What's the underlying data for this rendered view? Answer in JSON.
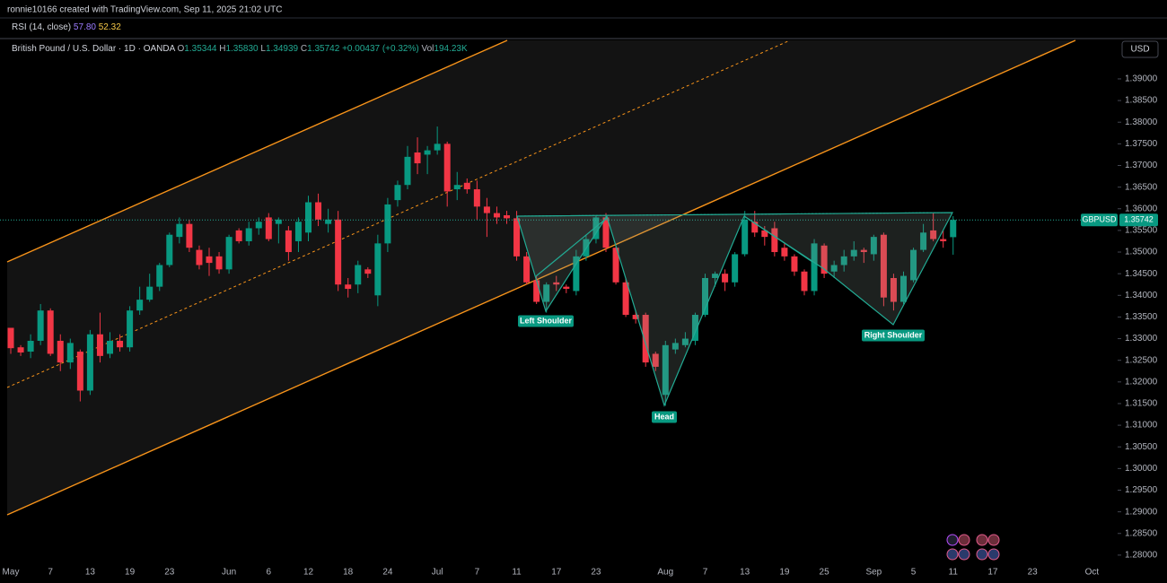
{
  "header": {
    "attribution": "ronnie10166 created with TradingView.com, Sep 11, 2025 21:02 UTC"
  },
  "indicator": {
    "name": "RSI (14, close)",
    "value1": "57.80",
    "value2": "52.32"
  },
  "chart_data": {
    "type": "candlestick",
    "title": "British Pound / U.S. Dollar · 1D · OANDA",
    "quote": [
      [
        "O",
        "1.35344"
      ],
      [
        "H",
        "1.35830"
      ],
      [
        "L",
        "1.34939"
      ],
      [
        "C",
        "1.35742"
      ]
    ],
    "change": "+0.00437 (+0.32%)",
    "volume_label": "Vol",
    "volume": "194.23K",
    "currency": "USD",
    "up_color": "#089981",
    "down_color": "#f23645",
    "categories": [
      "May",
      null,
      null,
      null,
      "7",
      null,
      null,
      null,
      "13",
      null,
      null,
      null,
      "19",
      null,
      null,
      null,
      "23",
      null,
      null,
      null,
      null,
      null,
      "Jun",
      null,
      null,
      null,
      "6",
      null,
      null,
      null,
      "12",
      null,
      null,
      null,
      "18",
      null,
      null,
      null,
      "24",
      null,
      null,
      null,
      null,
      "Jul",
      null,
      null,
      null,
      "7",
      null,
      null,
      null,
      "11",
      null,
      null,
      null,
      "17",
      null,
      null,
      null,
      "23",
      null,
      null,
      null,
      null,
      null,
      null,
      "Aug",
      null,
      null,
      null,
      "7",
      null,
      null,
      null,
      "13",
      null,
      null,
      null,
      "19",
      null,
      null,
      null,
      "25",
      null,
      null,
      null,
      null,
      "Sep",
      null,
      null,
      null,
      "5",
      null,
      null,
      null,
      "11",
      null,
      null,
      null,
      "17",
      null,
      null,
      null,
      "23",
      null,
      null,
      null,
      null,
      null,
      "Oct"
    ],
    "open": [
      1.3325,
      1.328,
      1.327,
      1.3295,
      1.3365,
      1.3295,
      1.3245,
      1.327,
      1.318,
      1.331,
      1.3265,
      1.3295,
      1.328,
      1.3365,
      1.339,
      1.342,
      1.347,
      1.3535,
      1.3565,
      1.3505,
      1.349,
      1.349,
      1.346,
      1.355,
      1.3525,
      1.3555,
      1.358,
      1.3565,
      1.355,
      1.3525,
      1.3545,
      1.3615,
      1.3565,
      1.3575,
      1.3425,
      1.3425,
      1.346,
      1.34,
      1.352,
      1.362,
      1.3655,
      1.373,
      1.3725,
      1.3735,
      1.375,
      1.3645,
      1.366,
      1.3645,
      1.3605,
      1.359,
      1.3585,
      1.3578,
      1.349,
      1.3435,
      1.3385,
      1.343,
      1.342,
      1.341,
      1.349,
      1.353,
      1.358,
      1.351,
      1.343,
      1.3355,
      1.3355,
      1.3265,
      1.317,
      1.3275,
      1.3285,
      1.3295,
      1.3355,
      1.344,
      1.345,
      1.343,
      1.3495,
      1.357,
      1.355,
      1.3555,
      1.351,
      1.349,
      1.3455,
      1.341,
      1.3515,
      1.3455,
      1.347,
      1.349,
      1.3505,
      1.3495,
      1.354,
      1.344,
      1.3385,
      1.3435,
      1.3505,
      1.355,
      1.353,
      1.35344,
      null,
      null,
      null,
      null,
      null,
      null,
      null,
      null,
      null,
      null,
      null,
      null,
      null,
      null
    ],
    "high": [
      1.3325,
      1.3285,
      1.331,
      1.338,
      1.337,
      1.331,
      1.33,
      1.3275,
      1.332,
      1.336,
      1.3315,
      1.331,
      1.3375,
      1.342,
      1.345,
      1.3475,
      1.3545,
      1.358,
      1.3575,
      1.3515,
      1.351,
      1.35,
      1.354,
      1.3555,
      1.357,
      1.358,
      1.359,
      1.358,
      1.356,
      1.358,
      1.363,
      1.3635,
      1.36,
      1.3595,
      1.344,
      1.348,
      1.3465,
      1.354,
      1.3625,
      1.3665,
      1.3745,
      1.3765,
      1.3745,
      1.379,
      1.3755,
      1.3685,
      1.367,
      1.3665,
      1.3625,
      1.3605,
      1.3595,
      1.3595,
      1.35,
      1.3445,
      1.343,
      1.3445,
      1.3425,
      1.3505,
      1.354,
      1.3585,
      1.359,
      1.3515,
      1.344,
      1.3365,
      1.336,
      1.327,
      1.3295,
      1.33,
      1.3315,
      1.336,
      1.345,
      1.3455,
      1.346,
      1.35,
      1.3595,
      1.3595,
      1.356,
      1.357,
      1.352,
      1.3495,
      1.346,
      1.353,
      1.352,
      1.348,
      1.3505,
      1.3525,
      1.351,
      1.354,
      1.3545,
      1.345,
      1.3455,
      1.351,
      1.3565,
      1.359,
      1.355,
      1.3583,
      null,
      null,
      null,
      null,
      null,
      null,
      null,
      null,
      null,
      null,
      null,
      null,
      null,
      null
    ],
    "low": [
      1.3265,
      1.326,
      1.3255,
      1.3285,
      1.326,
      1.3225,
      1.323,
      1.3155,
      1.317,
      1.3245,
      1.3255,
      1.327,
      1.327,
      1.3355,
      1.3385,
      1.341,
      1.3465,
      1.352,
      1.35,
      1.346,
      1.3445,
      1.345,
      1.345,
      1.352,
      1.3515,
      1.354,
      1.3525,
      1.352,
      1.348,
      1.35,
      1.3525,
      1.356,
      1.3545,
      1.341,
      1.3395,
      1.3405,
      1.344,
      1.3375,
      1.35,
      1.3605,
      1.3645,
      1.368,
      1.368,
      1.3725,
      1.3605,
      1.362,
      1.3635,
      1.3575,
      1.3535,
      1.3565,
      1.3565,
      1.348,
      1.3425,
      1.338,
      1.336,
      1.341,
      1.3405,
      1.34,
      1.348,
      1.352,
      1.35,
      1.3425,
      1.335,
      1.3335,
      1.3235,
      1.3225,
      1.3145,
      1.3265,
      1.328,
      1.3285,
      1.335,
      1.342,
      1.341,
      1.342,
      1.349,
      1.3535,
      1.3515,
      1.349,
      1.348,
      1.3445,
      1.34,
      1.34,
      1.344,
      1.344,
      1.3455,
      1.348,
      1.3475,
      1.348,
      1.3375,
      1.3365,
      1.338,
      1.343,
      1.35,
      1.3525,
      1.351,
      1.34939,
      null,
      null,
      null,
      null,
      null,
      null,
      null,
      null,
      null,
      null,
      null,
      null,
      null,
      null
    ],
    "close": [
      1.3278,
      1.3268,
      1.3295,
      1.3365,
      1.3265,
      1.3245,
      1.329,
      1.318,
      1.331,
      1.326,
      1.3295,
      1.328,
      1.3365,
      1.339,
      1.342,
      1.347,
      1.354,
      1.3565,
      1.351,
      1.347,
      1.3475,
      1.346,
      1.3535,
      1.3525,
      1.3555,
      1.357,
      1.353,
      1.3575,
      1.35,
      1.357,
      1.3615,
      1.3575,
      1.3575,
      1.3425,
      1.3415,
      1.347,
      1.345,
      1.352,
      1.361,
      1.3655,
      1.372,
      1.3705,
      1.3735,
      1.375,
      1.364,
      1.3655,
      1.3645,
      1.3605,
      1.359,
      1.358,
      1.3578,
      1.349,
      1.343,
      1.3385,
      1.3425,
      1.3425,
      1.3415,
      1.349,
      1.353,
      1.358,
      1.351,
      1.343,
      1.3355,
      1.3345,
      1.3245,
      1.3235,
      1.3285,
      1.329,
      1.33,
      1.3355,
      1.344,
      1.345,
      1.343,
      1.3495,
      1.3575,
      1.3545,
      1.3535,
      1.35,
      1.349,
      1.3455,
      1.341,
      1.352,
      1.345,
      1.347,
      1.349,
      1.3505,
      1.35,
      1.3535,
      1.3395,
      1.3385,
      1.3445,
      1.3505,
      1.3545,
      1.353,
      1.3525,
      1.35742,
      null,
      null,
      null,
      null,
      null,
      null,
      null,
      null,
      null,
      null,
      null,
      null,
      null,
      null
    ],
    "ylim": [
      1.2777,
      1.3989
    ],
    "yticks": [
      {
        "value": 1.28,
        "label": "1.28000"
      },
      {
        "value": 1.285,
        "label": "1.28500"
      },
      {
        "value": 1.29,
        "label": "1.29000"
      },
      {
        "value": 1.295,
        "label": "1.29500"
      },
      {
        "value": 1.3,
        "label": "1.30000"
      },
      {
        "value": 1.305,
        "label": "1.30500"
      },
      {
        "value": 1.31,
        "label": "1.31000"
      },
      {
        "value": 1.315,
        "label": "1.31500"
      },
      {
        "value": 1.32,
        "label": "1.32000"
      },
      {
        "value": 1.325,
        "label": "1.32500"
      },
      {
        "value": 1.33,
        "label": "1.33000"
      },
      {
        "value": 1.335,
        "label": "1.33500"
      },
      {
        "value": 1.34,
        "label": "1.34000"
      },
      {
        "value": 1.345,
        "label": "1.34500"
      },
      {
        "value": 1.35,
        "label": "1.35000"
      },
      {
        "value": 1.355,
        "label": "1.35500"
      },
      {
        "value": 1.36,
        "label": "1.36000"
      },
      {
        "value": 1.365,
        "label": "1.36500"
      },
      {
        "value": 1.37,
        "label": "1.37000"
      },
      {
        "value": 1.375,
        "label": "1.37500"
      },
      {
        "value": 1.38,
        "label": "1.38000"
      },
      {
        "value": 1.385,
        "label": "1.38500"
      },
      {
        "value": 1.39,
        "label": "1.39000"
      }
    ],
    "price_line": {
      "name": "GBPUSD",
      "value": 1.35742,
      "label": "1.35742"
    },
    "annotations": [
      "Left Shoulder",
      "Head",
      "Right Shoulder"
    ]
  }
}
